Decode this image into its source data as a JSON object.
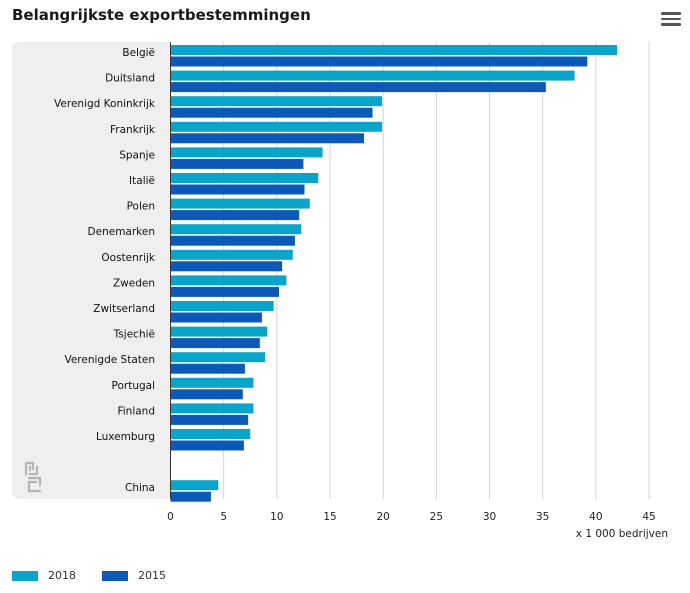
{
  "title": "Belangrijkste exportbestemmingen",
  "menu_icon": "hamburger-menu-icon",
  "logo_icon": "cbs-logo-icon",
  "unit_label": "x 1 000 bedrijven",
  "colors": {
    "s2018": "#0aa3c9",
    "s2015": "#0c59b7",
    "plot_bg": "#efefef",
    "grid": "#d4d4d4",
    "axis": "#333333"
  },
  "legend": [
    {
      "label": "2018",
      "color": "#0aa3c9"
    },
    {
      "label": "2015",
      "color": "#0c59b7"
    }
  ],
  "chart_data": {
    "type": "bar",
    "orientation": "horizontal",
    "categories": [
      "België",
      "Duitsland",
      "Verenigd Koninkrijk",
      "Frankrijk",
      "Spanje",
      "Italië",
      "Polen",
      "Denemarken",
      "Oostenrijk",
      "Zweden",
      "Zwitserland",
      "Tsjechië",
      "Verenigde Staten",
      "Portugal",
      "Finland",
      "Luxemburg",
      "",
      "China"
    ],
    "series": [
      {
        "name": "2018",
        "values": [
          42.0,
          38.0,
          19.9,
          19.9,
          14.3,
          13.9,
          13.1,
          12.3,
          11.5,
          10.9,
          9.7,
          9.1,
          8.9,
          7.8,
          7.8,
          7.5,
          null,
          4.5
        ]
      },
      {
        "name": "2015",
        "values": [
          39.2,
          35.3,
          19.0,
          18.2,
          12.5,
          12.6,
          12.1,
          11.7,
          10.5,
          10.2,
          8.6,
          8.4,
          7.0,
          6.8,
          7.3,
          6.9,
          null,
          3.8
        ]
      }
    ],
    "x_ticks": [
      0,
      5,
      10,
      15,
      20,
      25,
      30,
      35,
      40,
      45
    ],
    "xlim": [
      0,
      45
    ],
    "xlabel": "x 1 000 bedrijven",
    "grid": true,
    "legend_position": "bottom-left"
  }
}
